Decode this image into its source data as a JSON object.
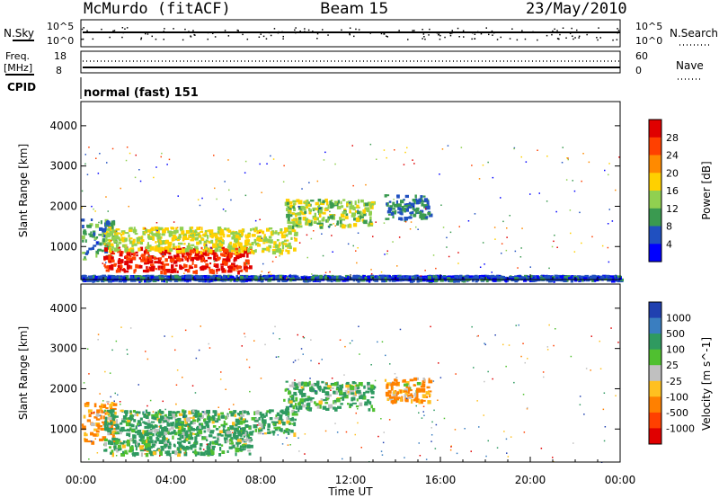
{
  "header": {
    "radar": "McMurdo (fitACF)",
    "beam": "Beam 15",
    "date": "23/May/2010"
  },
  "top_panels": {
    "nsky_label": "N.Sky",
    "nsearch_label": "N.Search",
    "noise_ticks_left": [
      "10^5",
      "10^0"
    ],
    "noise_ticks_right": [
      "10^5",
      "10^0"
    ],
    "freq_label_1": "Freq.",
    "freq_label_2": "[MHz]",
    "freq_ticks": [
      "18",
      "8"
    ],
    "nave_ticks": [
      "60",
      "0"
    ],
    "nave_label": "Nave",
    "cpid_label": "CPID",
    "cpid_text": "normal (fast) 151"
  },
  "xaxis": {
    "ticks": [
      "00:00",
      "04:00",
      "08:00",
      "12:00",
      "16:00",
      "20:00",
      "00:00"
    ],
    "label": "Time UT"
  },
  "panels": [
    {
      "ylabel": "Slant Range [km]",
      "yticks": [
        "1000",
        "2000",
        "3000",
        "4000"
      ],
      "colorbar_label": "Power [dB]",
      "colorbar_ticks": [
        "28",
        "24",
        "20",
        "16",
        "12",
        "8",
        "4"
      ],
      "colors": [
        "#e00000",
        "#ff4000",
        "#ff8a00",
        "#ffd000",
        "#90d050",
        "#3a9a50",
        "#2050c0",
        "#0000ff"
      ]
    },
    {
      "ylabel": "Slant Range [km]",
      "yticks": [
        "1000",
        "2000",
        "3000",
        "4000"
      ],
      "colorbar_label": "Velocity [m s^-1]",
      "colorbar_ticks": [
        "1000",
        "500",
        "100",
        "25",
        "-25",
        "-100",
        "-500",
        "-1000"
      ],
      "colors": [
        "#2040b0",
        "#3a7ec0",
        "#2f9a60",
        "#50c030",
        "#c0c0c0",
        "#ffc020",
        "#ff8000",
        "#ff4000",
        "#e00000"
      ]
    }
  ],
  "chart_data": [
    {
      "type": "heatmap",
      "title": "Power [dB]",
      "xlabel": "Time UT",
      "ylabel": "Slant Range [km]",
      "xlim": [
        0,
        24
      ],
      "ylim": [
        180,
        4600
      ],
      "colorbar_ticks": [
        28,
        24,
        20,
        16,
        12,
        8,
        4
      ],
      "grid": false,
      "regions": [
        {
          "t0": 0.0,
          "t1": 1.5,
          "r0": 700,
          "r1": 1700,
          "value": 10
        },
        {
          "t0": 1.0,
          "t1": 7.5,
          "r0": 400,
          "r1": 1000,
          "value": 28
        },
        {
          "t0": 1.0,
          "t1": 9.5,
          "r0": 900,
          "r1": 1500,
          "value": 16
        },
        {
          "t0": 9.0,
          "t1": 13.0,
          "r0": 1500,
          "r1": 2200,
          "value": 14
        },
        {
          "t0": 13.5,
          "t1": 15.5,
          "r0": 1700,
          "r1": 2300,
          "value": 8
        },
        {
          "t0": 0.0,
          "t1": 24.0,
          "r0": 200,
          "r1": 300,
          "value": 6
        }
      ]
    },
    {
      "type": "heatmap",
      "title": "Velocity [m s^-1]",
      "xlabel": "Time UT",
      "ylabel": "Slant Range [km]",
      "xlim": [
        0,
        24
      ],
      "ylim": [
        180,
        4600
      ],
      "colorbar_ticks": [
        1000,
        500,
        100,
        25,
        -25,
        -100,
        -500,
        -1000
      ],
      "grid": false,
      "regions": [
        {
          "t0": 0.0,
          "t1": 1.5,
          "r0": 700,
          "r1": 1700,
          "value": -200
        },
        {
          "t0": 1.0,
          "t1": 7.5,
          "r0": 400,
          "r1": 1000,
          "value": 150
        },
        {
          "t0": 1.0,
          "t1": 9.5,
          "r0": 900,
          "r1": 1500,
          "value": 150
        },
        {
          "t0": 9.0,
          "t1": 13.0,
          "r0": 1500,
          "r1": 2200,
          "value": 150
        },
        {
          "t0": 13.5,
          "t1": 15.5,
          "r0": 1700,
          "r1": 2300,
          "value": -150
        }
      ]
    }
  ]
}
